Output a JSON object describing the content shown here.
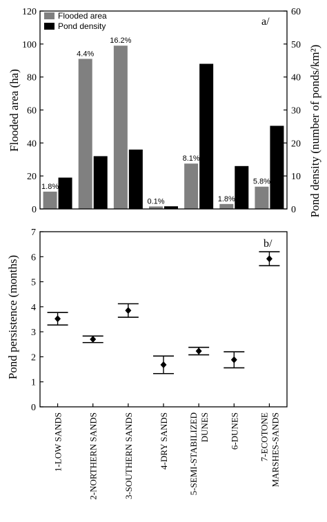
{
  "chart_data": [
    {
      "type": "bar",
      "panel_label": "a/",
      "categories": [
        "1-LOW SANDS",
        "2-NORTHERN SANDS",
        "3-SOUTHERN SANDS",
        "4-DRY SANDS",
        "5-SEMI-STABILIZED DUNES",
        "6-DUNES",
        "7-ECOTONE MARSHES-SANDS"
      ],
      "ylabel_left": "Flooded area (ha)",
      "ylabel_right": "Pond density  (number of ponds/km²)",
      "ylim_left": [
        0,
        120
      ],
      "ylim_right": [
        0,
        60
      ],
      "yticks_left": [
        "0",
        "20",
        "40",
        "60",
        "80",
        "100",
        "120"
      ],
      "yticks_right": [
        "0",
        "10",
        "20",
        "30",
        "40",
        "50",
        "60"
      ],
      "legend_position": "top-left",
      "series": [
        {
          "name": "Flooded area",
          "axis": "left",
          "color": "#808080",
          "values": [
            10.5,
            91,
            99,
            1.5,
            27.5,
            3,
            13.5
          ],
          "labels": [
            "1.8%",
            "4.4%",
            "16.2%",
            "0.1%",
            "8.1%",
            "1.8%",
            "5.8%"
          ]
        },
        {
          "name": "Pond density",
          "axis": "right",
          "color": "#000000",
          "values": [
            9.5,
            16,
            18,
            0.8,
            44,
            13,
            25.2
          ]
        }
      ]
    },
    {
      "type": "scatter",
      "panel_label": "b/",
      "categories": [
        "1-LOW SANDS",
        "2-NORTHERN SANDS",
        "3-SOUTHERN SANDS",
        "4-DRY SANDS",
        "5-SEMI-STABILIZED DUNES",
        "6-DUNES",
        "7-ECOTONE MARSHES-SANDS"
      ],
      "tick_labels": [
        [
          "1-LOW SANDS"
        ],
        [
          "2-NORTHERN SANDS"
        ],
        [
          "3-SOUTHERN SANDS"
        ],
        [
          "4-DRY SANDS"
        ],
        [
          "5-SEMI-STABILIZED",
          "DUNES"
        ],
        [
          "6-DUNES"
        ],
        [
          "7-ECOTONE",
          "MARSHES-SANDS"
        ]
      ],
      "ylabel": "Pond persistence (months)",
      "ylim": [
        0,
        7
      ],
      "yticks": [
        "0",
        "1",
        "2",
        "3",
        "4",
        "5",
        "6",
        "7"
      ],
      "mean": [
        3.52,
        2.7,
        3.85,
        1.68,
        2.23,
        1.88,
        5.92
      ],
      "upper": [
        3.77,
        2.83,
        4.12,
        2.03,
        2.38,
        2.2,
        6.2
      ],
      "lower": [
        3.27,
        2.57,
        3.58,
        1.33,
        2.08,
        1.56,
        5.64
      ]
    }
  ]
}
